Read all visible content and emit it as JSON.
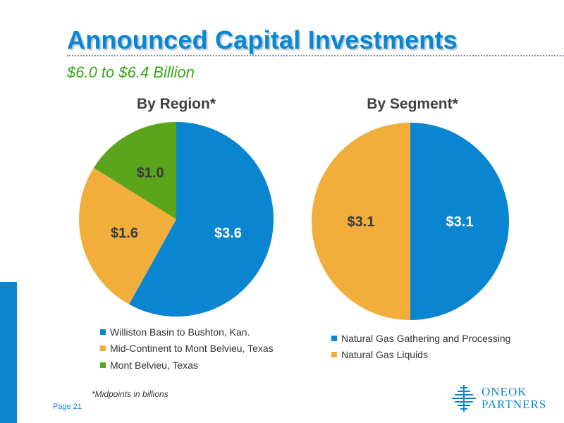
{
  "title": "Announced Capital Investments",
  "subtitle": "$6.0 to $6.4 Billion",
  "footnote": "*Midpoints in billions",
  "page_label": "Page 21",
  "logo": {
    "line1": "ONEOK",
    "line2": "PARTNERS",
    "icon": "oneok-logo-icon"
  },
  "colors": {
    "blue": "#0a86d1",
    "orange": "#f2ae3a",
    "green": "#5aa51c",
    "title_blue": "#0a86d1",
    "subtitle_green": "#3aa51c"
  },
  "chart_data": [
    {
      "type": "pie",
      "title": "By Region*",
      "slices": [
        {
          "label": "Williston Basin to Bushton, Kan.",
          "value": 3.6,
          "display": "$3.6",
          "color": "#0a86d1"
        },
        {
          "label": "Mid-Continent to Mont Belvieu, Texas",
          "value": 1.6,
          "display": "$1.6",
          "color": "#f2ae3a"
        },
        {
          "label": "Mont Belvieu, Texas",
          "value": 1.0,
          "display": "$1.0",
          "color": "#5aa51c"
        }
      ],
      "legend_position": "bottom"
    },
    {
      "type": "pie",
      "title": "By Segment*",
      "slices": [
        {
          "label": "Natural Gas Gathering and Processing",
          "value": 3.1,
          "display": "$3.1",
          "color": "#0a86d1"
        },
        {
          "label": "Natural Gas Liquids",
          "value": 3.1,
          "display": "$3.1",
          "color": "#f2ae3a"
        }
      ],
      "legend_position": "bottom"
    }
  ]
}
